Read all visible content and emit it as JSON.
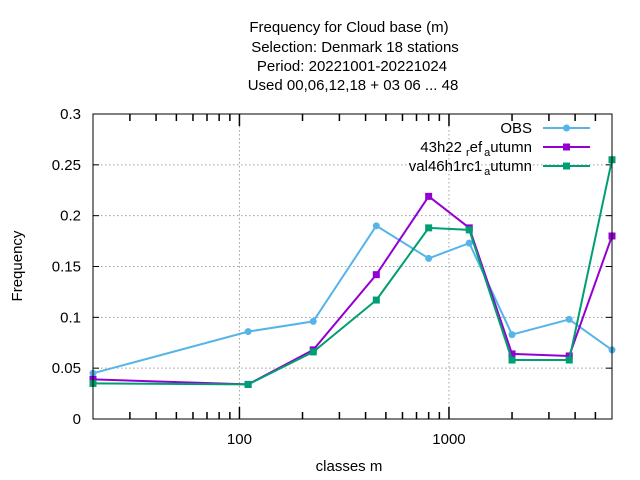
{
  "chart_data": {
    "type": "line",
    "title_lines": [
      "Frequency  for Cloud base (m)",
      "Selection: Denmark      18 stations",
      "Period: 20221001-20221024",
      "Used  00,06,12,18  + 03 06 ... 48"
    ],
    "xlabel": "classes m",
    "ylabel": "Frequency",
    "xscale": "log",
    "xlim": [
      20,
      6000
    ],
    "ylim": [
      0,
      0.3
    ],
    "x_tick_labels": [
      "100",
      "1000"
    ],
    "y_tick_labels": [
      "0",
      "0.05",
      "0.1",
      "0.15",
      "0.2",
      "0.25",
      "0.3"
    ],
    "grid": true,
    "legend_position": "top-right",
    "x": [
      20,
      110,
      225,
      450,
      800,
      1250,
      2000,
      3750,
      6000
    ],
    "series": [
      {
        "name": "OBS",
        "color": "#56b4e9",
        "marker": "circle",
        "values": [
          0.045,
          0.086,
          0.096,
          0.19,
          0.158,
          0.173,
          0.083,
          0.098,
          0.068
        ]
      },
      {
        "name": "43h22",
        "name_sub1": "r",
        "name_mid": "ef",
        "name_sub2": "a",
        "name_end": "utumn",
        "color": "#9400d3",
        "marker": "square",
        "values": [
          0.039,
          0.034,
          0.068,
          0.142,
          0.219,
          0.188,
          0.064,
          0.062,
          0.18
        ]
      },
      {
        "name": "val46h1rc1",
        "name_sub2": "a",
        "name_end": "utumn",
        "color": "#009e73",
        "marker": "square",
        "values": [
          0.035,
          0.034,
          0.066,
          0.117,
          0.188,
          0.186,
          0.058,
          0.058,
          0.255
        ]
      }
    ]
  }
}
